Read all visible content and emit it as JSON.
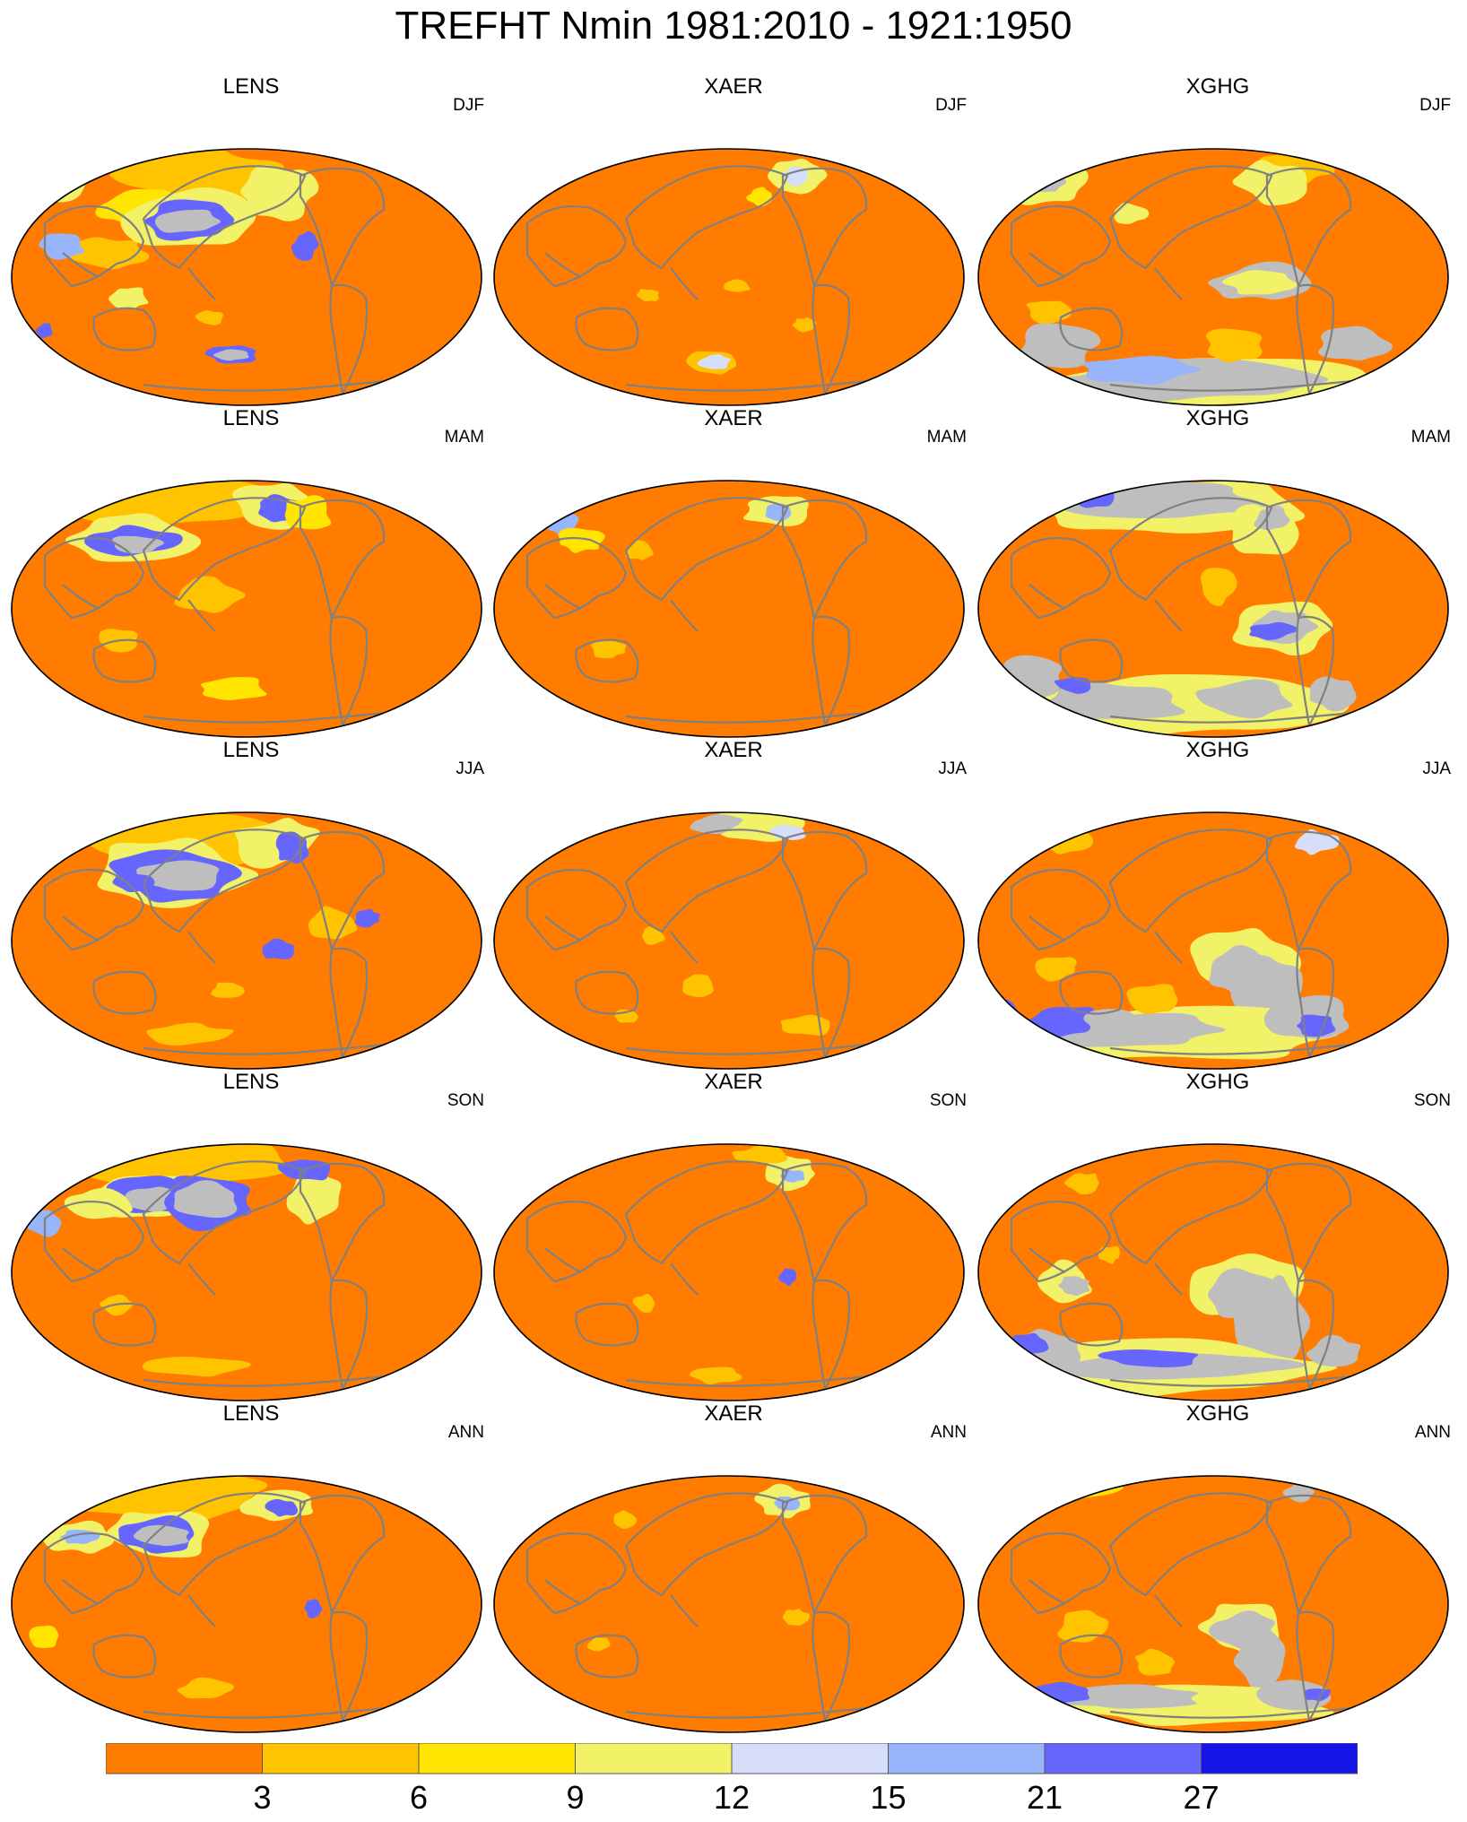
{
  "title": "TREFHT Nmin 1981:2010 - 1921:1950",
  "colors": {
    "levels": [
      "#FF7C00",
      "#FFC300",
      "#FFE500",
      "#F2F268",
      "#D6DEFA",
      "#98B4FA",
      "#6666FF",
      "#1515E8"
    ],
    "gray_fill": "#BEBEBE",
    "coast": "#808080"
  },
  "colorbar": {
    "tick_labels": [
      "3",
      "6",
      "9",
      "12",
      "15",
      "21",
      "27"
    ]
  },
  "columns": [
    "LENS",
    "XAER",
    "XGHG"
  ],
  "rows": [
    "DJF",
    "MAM",
    "JJA",
    "SON",
    "ANN"
  ],
  "panels": [
    {
      "name": "LENS",
      "season": "DJF"
    },
    {
      "name": "XAER",
      "season": "DJF"
    },
    {
      "name": "XGHG",
      "season": "DJF"
    },
    {
      "name": "LENS",
      "season": "MAM"
    },
    {
      "name": "XAER",
      "season": "MAM"
    },
    {
      "name": "XGHG",
      "season": "MAM"
    },
    {
      "name": "LENS",
      "season": "JJA"
    },
    {
      "name": "XAER",
      "season": "JJA"
    },
    {
      "name": "XGHG",
      "season": "JJA"
    },
    {
      "name": "LENS",
      "season": "SON"
    },
    {
      "name": "XAER",
      "season": "SON"
    },
    {
      "name": "XGHG",
      "season": "SON"
    },
    {
      "name": "LENS",
      "season": "ANN"
    },
    {
      "name": "XAER",
      "season": "ANN"
    },
    {
      "name": "XGHG",
      "season": "ANN"
    }
  ]
}
